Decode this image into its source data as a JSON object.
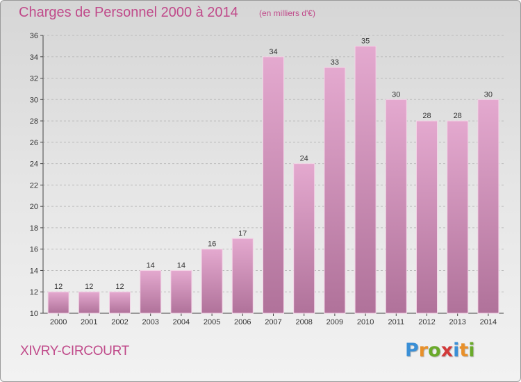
{
  "header": {
    "title": "Charges de Personnel 2000 à 2014",
    "subtitle": "(en milliers d'€)"
  },
  "footer": {
    "city": "XIVRY-CIRCOURT",
    "logo": {
      "text": "Proxiti",
      "letter_colors": [
        "#3a8fd6",
        "#e8902a",
        "#6aaa2a",
        "#d23a3a",
        "#3a8fd6",
        "#e8902a",
        "#6aaa2a"
      ]
    }
  },
  "colors": {
    "bar_top": "#e4a9cf",
    "bar_bottom": "#b0729a",
    "bar_edge": "#f3d3e6",
    "grid": "#bbbbbb",
    "axis": "#444444"
  },
  "chart_data": {
    "type": "bar",
    "title": "Charges de Personnel 2000 à 2014",
    "subtitle": "(en milliers d'€)",
    "categories": [
      "2000",
      "2001",
      "2002",
      "2003",
      "2004",
      "2005",
      "2006",
      "2007",
      "2008",
      "2009",
      "2010",
      "2011",
      "2012",
      "2013",
      "2014"
    ],
    "values": [
      12,
      12,
      12,
      14,
      14,
      16,
      17,
      34,
      24,
      33,
      35,
      30,
      28,
      28,
      30
    ],
    "ylim": [
      10,
      36
    ],
    "yticks": [
      10,
      12,
      14,
      16,
      18,
      20,
      22,
      24,
      26,
      28,
      30,
      32,
      34,
      36
    ],
    "grid": true,
    "data_labels": true
  }
}
